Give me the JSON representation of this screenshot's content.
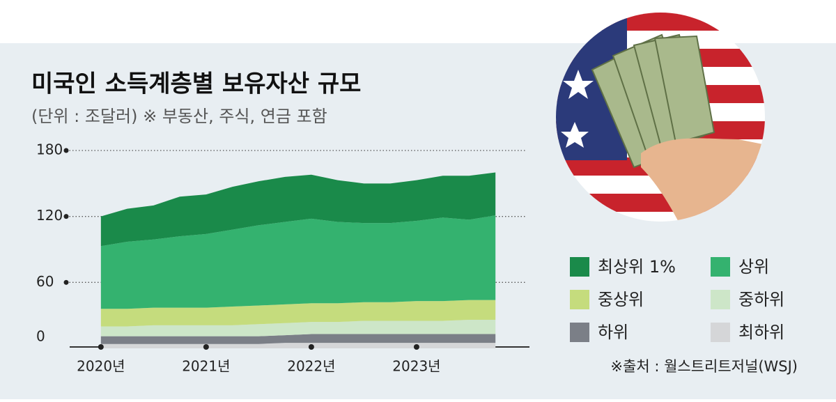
{
  "chart_data": {
    "type": "stacked-area",
    "title": "미국인 소득계층별 보유자산 규모",
    "subtitle": "(단위 : 조달러) ※ 부동산, 주식, 연금 포함",
    "source": "※출처 : 월스트리트저널(WSJ)",
    "x": [
      2020,
      2020.25,
      2020.5,
      2020.75,
      2021,
      2021.25,
      2021.5,
      2021.75,
      2022,
      2022.25,
      2022.5,
      2022.75,
      2023,
      2023.25,
      2023.5,
      2023.75
    ],
    "xlim": [
      2019.67,
      2024.04
    ],
    "xticks": [
      {
        "value": 2020,
        "label": "2020년"
      },
      {
        "value": 2021,
        "label": "2021년"
      },
      {
        "value": 2022,
        "label": "2022년"
      },
      {
        "value": 2023,
        "label": "2023년"
      }
    ],
    "ylim": [
      0,
      180
    ],
    "yticks": [
      0,
      60,
      120,
      180
    ],
    "grid": true,
    "series": [
      {
        "name": "최하위",
        "color": "#d5d6d8",
        "values": [
          4,
          4,
          4,
          4,
          4,
          4,
          4,
          5,
          5,
          5,
          5,
          5,
          5,
          5,
          5,
          5
        ]
      },
      {
        "name": "하위",
        "color": "#7b7f87",
        "values": [
          7,
          7,
          7,
          7,
          7,
          7,
          7,
          7,
          8,
          8,
          8,
          8,
          8,
          8,
          8,
          8
        ]
      },
      {
        "name": "중하위",
        "color": "#cde6c8",
        "values": [
          9,
          9,
          10,
          10,
          10,
          10,
          11,
          11,
          11,
          11,
          12,
          12,
          12,
          12,
          13,
          13
        ]
      },
      {
        "name": "중상위",
        "color": "#c5dc7d",
        "values": [
          16,
          16,
          16,
          16,
          16,
          17,
          17,
          17,
          17,
          17,
          17,
          17,
          18,
          18,
          18,
          18
        ]
      },
      {
        "name": "상위",
        "color": "#34b26f",
        "values": [
          57,
          61,
          62,
          65,
          67,
          70,
          73,
          75,
          77,
          74,
          72,
          72,
          73,
          76,
          73,
          77
        ]
      },
      {
        "name": "최상위 1%",
        "color": "#1a8a4a",
        "values": [
          27,
          30,
          31,
          36,
          36,
          39,
          40,
          41,
          40,
          38,
          36,
          36,
          37,
          38,
          40,
          39
        ]
      }
    ],
    "legend_order": [
      5,
      4,
      3,
      2,
      1,
      0
    ]
  }
}
